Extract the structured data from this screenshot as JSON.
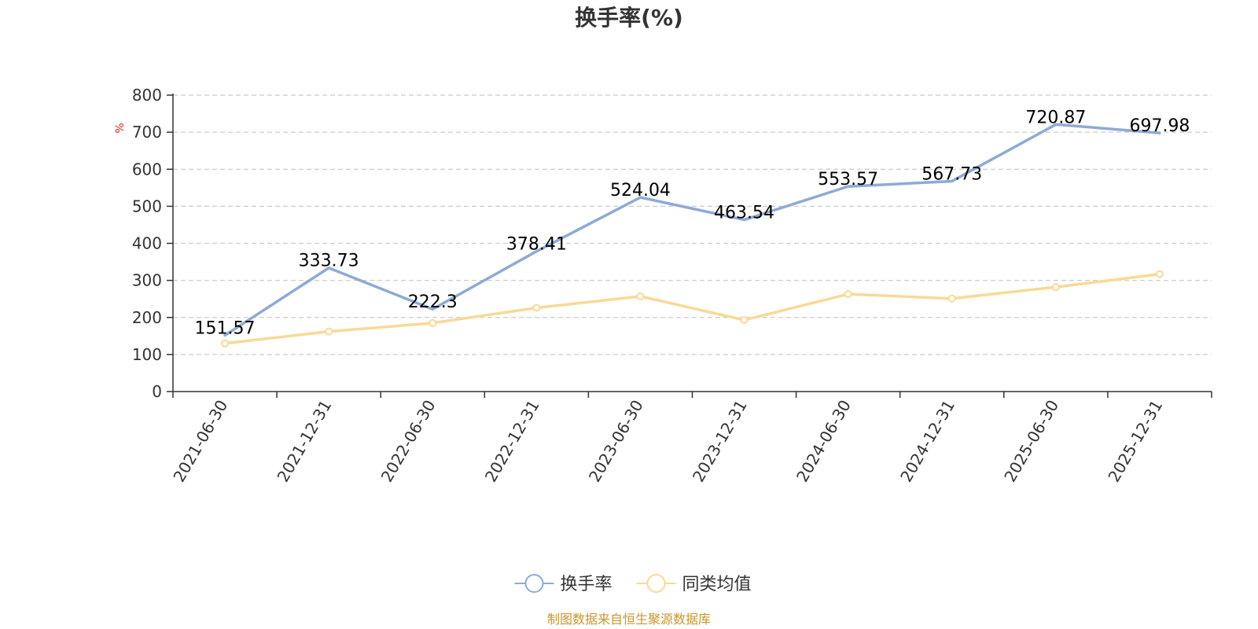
{
  "chart_data": {
    "type": "line",
    "title": "换手率(%)",
    "ylabel": "%",
    "xlabel": "",
    "ylim": [
      0,
      800
    ],
    "yticks": [
      0,
      100,
      200,
      300,
      400,
      500,
      600,
      700,
      800
    ],
    "grid": true,
    "legend_position": "bottom-center",
    "categories": [
      "2021-06-30",
      "2021-12-31",
      "2022-06-30",
      "2022-12-31",
      "2023-06-30",
      "2023-12-31",
      "2024-06-30",
      "2024-12-31",
      "2025-06-30",
      "2025-12-31"
    ],
    "series": [
      {
        "name": "换手率",
        "color": "#8eaad6",
        "values": [
          151.57,
          333.73,
          222.3,
          378.41,
          524.04,
          463.54,
          553.57,
          567.73,
          720.87,
          697.98
        ],
        "labels": [
          "151.57",
          "333.73",
          "222.3",
          "378.41",
          "524.04",
          "463.54",
          "553.57",
          "567.73",
          "720.87",
          "697.98"
        ],
        "show_labels": true
      },
      {
        "name": "同类均值",
        "color": "#fad995",
        "values": [
          130,
          162,
          185,
          226,
          257,
          193,
          263,
          251,
          282,
          317
        ],
        "show_labels": false
      }
    ]
  },
  "source": {
    "text": "制图数据来自恒生聚源数据库",
    "color": "#c8962d"
  },
  "colors": {
    "unit_label": "#e02020",
    "axis": "#333333",
    "grid": "#cccccc"
  }
}
